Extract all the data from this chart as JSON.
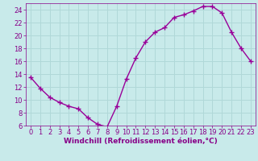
{
  "x": [
    0,
    1,
    2,
    3,
    4,
    5,
    6,
    7,
    8,
    9,
    10,
    11,
    12,
    13,
    14,
    15,
    16,
    17,
    18,
    19,
    20,
    21,
    22,
    23
  ],
  "y": [
    13.5,
    11.8,
    10.4,
    9.6,
    9.0,
    8.6,
    7.2,
    6.2,
    5.8,
    9.0,
    13.2,
    16.5,
    19.0,
    20.5,
    21.2,
    22.8,
    23.2,
    23.8,
    24.5,
    24.5,
    23.5,
    20.5,
    18.0,
    16.0
  ],
  "line_color": "#990099",
  "marker": "+",
  "marker_size": 4,
  "marker_linewidth": 1.0,
  "line_width": 1.0,
  "bg_color": "#c8eaea",
  "grid_color": "#b0d8d8",
  "xlabel": "Windchill (Refroidissement éolien,°C)",
  "xlabel_fontsize": 6.5,
  "tick_fontsize": 6,
  "ylim": [
    6,
    25
  ],
  "xlim": [
    -0.5,
    23.5
  ],
  "yticks": [
    6,
    8,
    10,
    12,
    14,
    16,
    18,
    20,
    22,
    24
  ],
  "xticks": [
    0,
    1,
    2,
    3,
    4,
    5,
    6,
    7,
    8,
    9,
    10,
    11,
    12,
    13,
    14,
    15,
    16,
    17,
    18,
    19,
    20,
    21,
    22,
    23
  ],
  "tick_color": "#880088",
  "spine_color": "#880088"
}
